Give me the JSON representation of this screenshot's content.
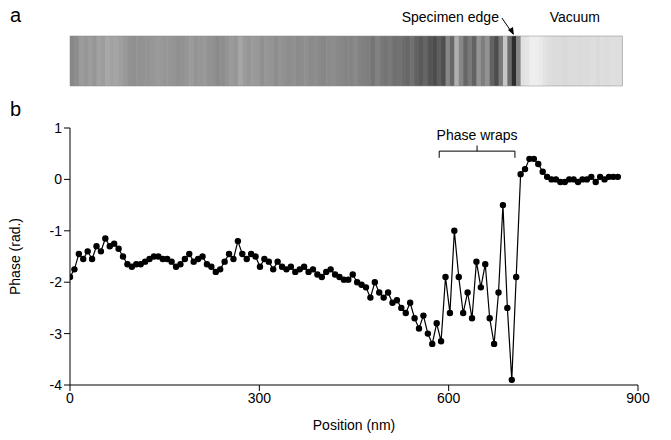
{
  "panel_a": {
    "letter": "a",
    "annotations": [
      "Specimen edge",
      "Vacuum"
    ]
  },
  "chart_data": {
    "type": "line",
    "panel_letter": "b",
    "x_label": "Position (nm)",
    "y_label": "Phase (rad.)",
    "annotation": "Phase wraps",
    "color": "#000000",
    "marker": "circle",
    "line_style": "solid",
    "grid": false,
    "xlim": [
      0,
      900
    ],
    "xticks": [
      0,
      300,
      600,
      900
    ],
    "ylim": [
      -4,
      1
    ],
    "yticks": [
      -4,
      -3,
      -2,
      -1,
      0,
      1
    ],
    "x": [
      0,
      7,
      14,
      21,
      28,
      35,
      42,
      49,
      56,
      63,
      70,
      77,
      84,
      91,
      98,
      105,
      112,
      119,
      126,
      133,
      140,
      147,
      154,
      161,
      168,
      175,
      182,
      189,
      196,
      203,
      210,
      217,
      224,
      231,
      238,
      245,
      252,
      259,
      266,
      273,
      280,
      287,
      294,
      301,
      308,
      315,
      322,
      329,
      336,
      343,
      350,
      357,
      364,
      371,
      378,
      385,
      392,
      399,
      406,
      413,
      420,
      427,
      434,
      441,
      448,
      455,
      462,
      469,
      476,
      483,
      490,
      497,
      504,
      511,
      518,
      525,
      532,
      539,
      546,
      553,
      560,
      567,
      574,
      581,
      588,
      595,
      602,
      609,
      616,
      623,
      630,
      637,
      644,
      651,
      658,
      665,
      672,
      679,
      686,
      693,
      700,
      707,
      714,
      721,
      728,
      735,
      742,
      749,
      756,
      763,
      770,
      777,
      784,
      791,
      798,
      805,
      812,
      819,
      826,
      833,
      840,
      847,
      854,
      861,
      868
    ],
    "values": [
      -1.9,
      -1.75,
      -1.45,
      -1.55,
      -1.4,
      -1.55,
      -1.3,
      -1.4,
      -1.15,
      -1.3,
      -1.25,
      -1.35,
      -1.5,
      -1.65,
      -1.7,
      -1.65,
      -1.65,
      -1.6,
      -1.55,
      -1.5,
      -1.5,
      -1.55,
      -1.55,
      -1.6,
      -1.7,
      -1.65,
      -1.55,
      -1.45,
      -1.6,
      -1.55,
      -1.5,
      -1.65,
      -1.7,
      -1.8,
      -1.75,
      -1.6,
      -1.45,
      -1.55,
      -1.2,
      -1.45,
      -1.55,
      -1.45,
      -1.5,
      -1.7,
      -1.55,
      -1.6,
      -1.75,
      -1.6,
      -1.7,
      -1.75,
      -1.7,
      -1.8,
      -1.75,
      -1.7,
      -1.8,
      -1.75,
      -1.85,
      -1.9,
      -1.8,
      -1.75,
      -1.85,
      -1.9,
      -1.95,
      -1.95,
      -1.85,
      -2.0,
      -2.05,
      -2.1,
      -2.3,
      -2.0,
      -2.2,
      -2.3,
      -2.2,
      -2.4,
      -2.35,
      -2.5,
      -2.6,
      -2.4,
      -2.7,
      -2.9,
      -2.65,
      -3.0,
      -3.2,
      -2.8,
      -3.15,
      -1.9,
      -2.6,
      -1.0,
      -1.9,
      -2.6,
      -2.2,
      -2.7,
      -1.6,
      -2.1,
      -1.65,
      -2.7,
      -3.2,
      -2.2,
      -0.5,
      -2.5,
      -3.9,
      -1.9,
      0.1,
      0.2,
      0.4,
      0.4,
      0.3,
      0.15,
      0.05,
      0.0,
      0.0,
      -0.05,
      -0.05,
      0.0,
      0.0,
      -0.05,
      0.0,
      0.0,
      0.05,
      -0.05,
      0.05,
      0.0,
      0.05,
      0.05,
      0.05
    ]
  }
}
